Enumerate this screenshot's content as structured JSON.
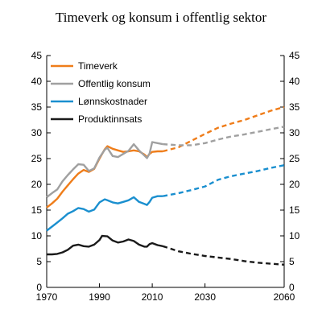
{
  "chart_data": {
    "type": "line",
    "title": "Timeverk og konsum i offentlig sektor",
    "x_ticks": [
      1970,
      1990,
      2010,
      2030,
      2060
    ],
    "xlim": [
      1970,
      2060
    ],
    "ylim": [
      0,
      45
    ],
    "y_ticks": [
      0,
      5,
      10,
      15,
      20,
      25,
      30,
      35,
      40,
      45
    ],
    "y_ticks_right": [
      0,
      5,
      10,
      15,
      20,
      25,
      30,
      35,
      40,
      45
    ],
    "grid": false,
    "legend_position": "top-left",
    "projection_style": "dashed",
    "series": [
      {
        "name": "Timeverk",
        "color": "#ef7d1a",
        "historical": [
          [
            1970,
            15.5
          ],
          [
            1972,
            16.3
          ],
          [
            1974,
            17.2
          ],
          [
            1976,
            18.6
          ],
          [
            1978,
            19.8
          ],
          [
            1980,
            21.0
          ],
          [
            1982,
            22.1
          ],
          [
            1984,
            22.8
          ],
          [
            1986,
            22.4
          ],
          [
            1988,
            23.0
          ],
          [
            1990,
            25.0
          ],
          [
            1992,
            26.8
          ],
          [
            1993,
            27.4
          ],
          [
            1995,
            26.9
          ],
          [
            1997,
            26.6
          ],
          [
            1999,
            26.3
          ],
          [
            2001,
            26.4
          ],
          [
            2003,
            26.6
          ],
          [
            2005,
            26.4
          ],
          [
            2007,
            25.8
          ],
          [
            2008,
            25.3
          ],
          [
            2009,
            25.9
          ],
          [
            2010,
            26.3
          ],
          [
            2012,
            26.4
          ],
          [
            2014,
            26.4
          ]
        ],
        "projection": [
          [
            2014,
            26.4
          ],
          [
            2020,
            27.2
          ],
          [
            2025,
            28.5
          ],
          [
            2030,
            29.8
          ],
          [
            2035,
            31.0
          ],
          [
            2040,
            31.8
          ],
          [
            2045,
            32.5
          ],
          [
            2050,
            33.4
          ],
          [
            2055,
            34.3
          ],
          [
            2060,
            35.0
          ]
        ]
      },
      {
        "name": "Offentlig konsum",
        "color": "#a0a0a0",
        "historical": [
          [
            1970,
            17.5
          ],
          [
            1972,
            18.3
          ],
          [
            1974,
            19.0
          ],
          [
            1976,
            20.6
          ],
          [
            1978,
            21.8
          ],
          [
            1980,
            22.9
          ],
          [
            1982,
            23.9
          ],
          [
            1984,
            23.8
          ],
          [
            1986,
            22.6
          ],
          [
            1988,
            23.1
          ],
          [
            1990,
            25.2
          ],
          [
            1992,
            26.7
          ],
          [
            1993,
            27.1
          ],
          [
            1995,
            25.5
          ],
          [
            1997,
            25.3
          ],
          [
            1999,
            25.9
          ],
          [
            2001,
            26.5
          ],
          [
            2003,
            27.8
          ],
          [
            2005,
            26.6
          ],
          [
            2007,
            25.6
          ],
          [
            2008,
            25.1
          ],
          [
            2009,
            26.0
          ],
          [
            2010,
            28.2
          ],
          [
            2012,
            28.0
          ],
          [
            2014,
            27.8
          ]
        ],
        "projection": [
          [
            2014,
            27.8
          ],
          [
            2020,
            27.6
          ],
          [
            2025,
            27.6
          ],
          [
            2030,
            28.0
          ],
          [
            2035,
            28.7
          ],
          [
            2040,
            29.3
          ],
          [
            2045,
            29.7
          ],
          [
            2050,
            30.2
          ],
          [
            2055,
            30.7
          ],
          [
            2060,
            31.2
          ]
        ]
      },
      {
        "name": "Lønnskostnader",
        "color": "#1a8fcf",
        "historical": [
          [
            1970,
            11.0
          ],
          [
            1972,
            11.8
          ],
          [
            1974,
            12.6
          ],
          [
            1976,
            13.4
          ],
          [
            1978,
            14.3
          ],
          [
            1980,
            14.8
          ],
          [
            1982,
            15.4
          ],
          [
            1984,
            15.2
          ],
          [
            1986,
            14.7
          ],
          [
            1988,
            15.1
          ],
          [
            1990,
            16.5
          ],
          [
            1992,
            17.1
          ],
          [
            1993,
            16.9
          ],
          [
            1995,
            16.5
          ],
          [
            1997,
            16.3
          ],
          [
            1999,
            16.6
          ],
          [
            2001,
            16.9
          ],
          [
            2003,
            17.5
          ],
          [
            2005,
            16.6
          ],
          [
            2007,
            16.2
          ],
          [
            2008,
            16.0
          ],
          [
            2009,
            16.6
          ],
          [
            2010,
            17.4
          ],
          [
            2012,
            17.7
          ],
          [
            2014,
            17.7
          ]
        ],
        "projection": [
          [
            2014,
            17.7
          ],
          [
            2020,
            18.3
          ],
          [
            2025,
            18.9
          ],
          [
            2030,
            19.6
          ],
          [
            2035,
            20.9
          ],
          [
            2040,
            21.6
          ],
          [
            2045,
            22.1
          ],
          [
            2050,
            22.6
          ],
          [
            2055,
            23.2
          ],
          [
            2060,
            23.7
          ]
        ]
      },
      {
        "name": "Produktinnsats",
        "color": "#1a1a1a",
        "historical": [
          [
            1970,
            6.4
          ],
          [
            1972,
            6.4
          ],
          [
            1974,
            6.5
          ],
          [
            1976,
            6.8
          ],
          [
            1978,
            7.3
          ],
          [
            1980,
            8.1
          ],
          [
            1982,
            8.3
          ],
          [
            1984,
            8.0
          ],
          [
            1986,
            7.9
          ],
          [
            1988,
            8.3
          ],
          [
            1990,
            9.2
          ],
          [
            1991,
            10.0
          ],
          [
            1993,
            9.9
          ],
          [
            1995,
            9.1
          ],
          [
            1997,
            8.7
          ],
          [
            1999,
            8.9
          ],
          [
            2001,
            9.3
          ],
          [
            2003,
            9.0
          ],
          [
            2005,
            8.3
          ],
          [
            2007,
            7.9
          ],
          [
            2008,
            7.9
          ],
          [
            2009,
            8.4
          ],
          [
            2010,
            8.6
          ],
          [
            2012,
            8.2
          ],
          [
            2014,
            8.0
          ]
        ],
        "projection": [
          [
            2014,
            8.0
          ],
          [
            2020,
            7.0
          ],
          [
            2025,
            6.5
          ],
          [
            2030,
            6.1
          ],
          [
            2035,
            5.8
          ],
          [
            2040,
            5.5
          ],
          [
            2045,
            5.1
          ],
          [
            2050,
            4.8
          ],
          [
            2055,
            4.6
          ],
          [
            2060,
            4.4
          ]
        ]
      }
    ]
  }
}
